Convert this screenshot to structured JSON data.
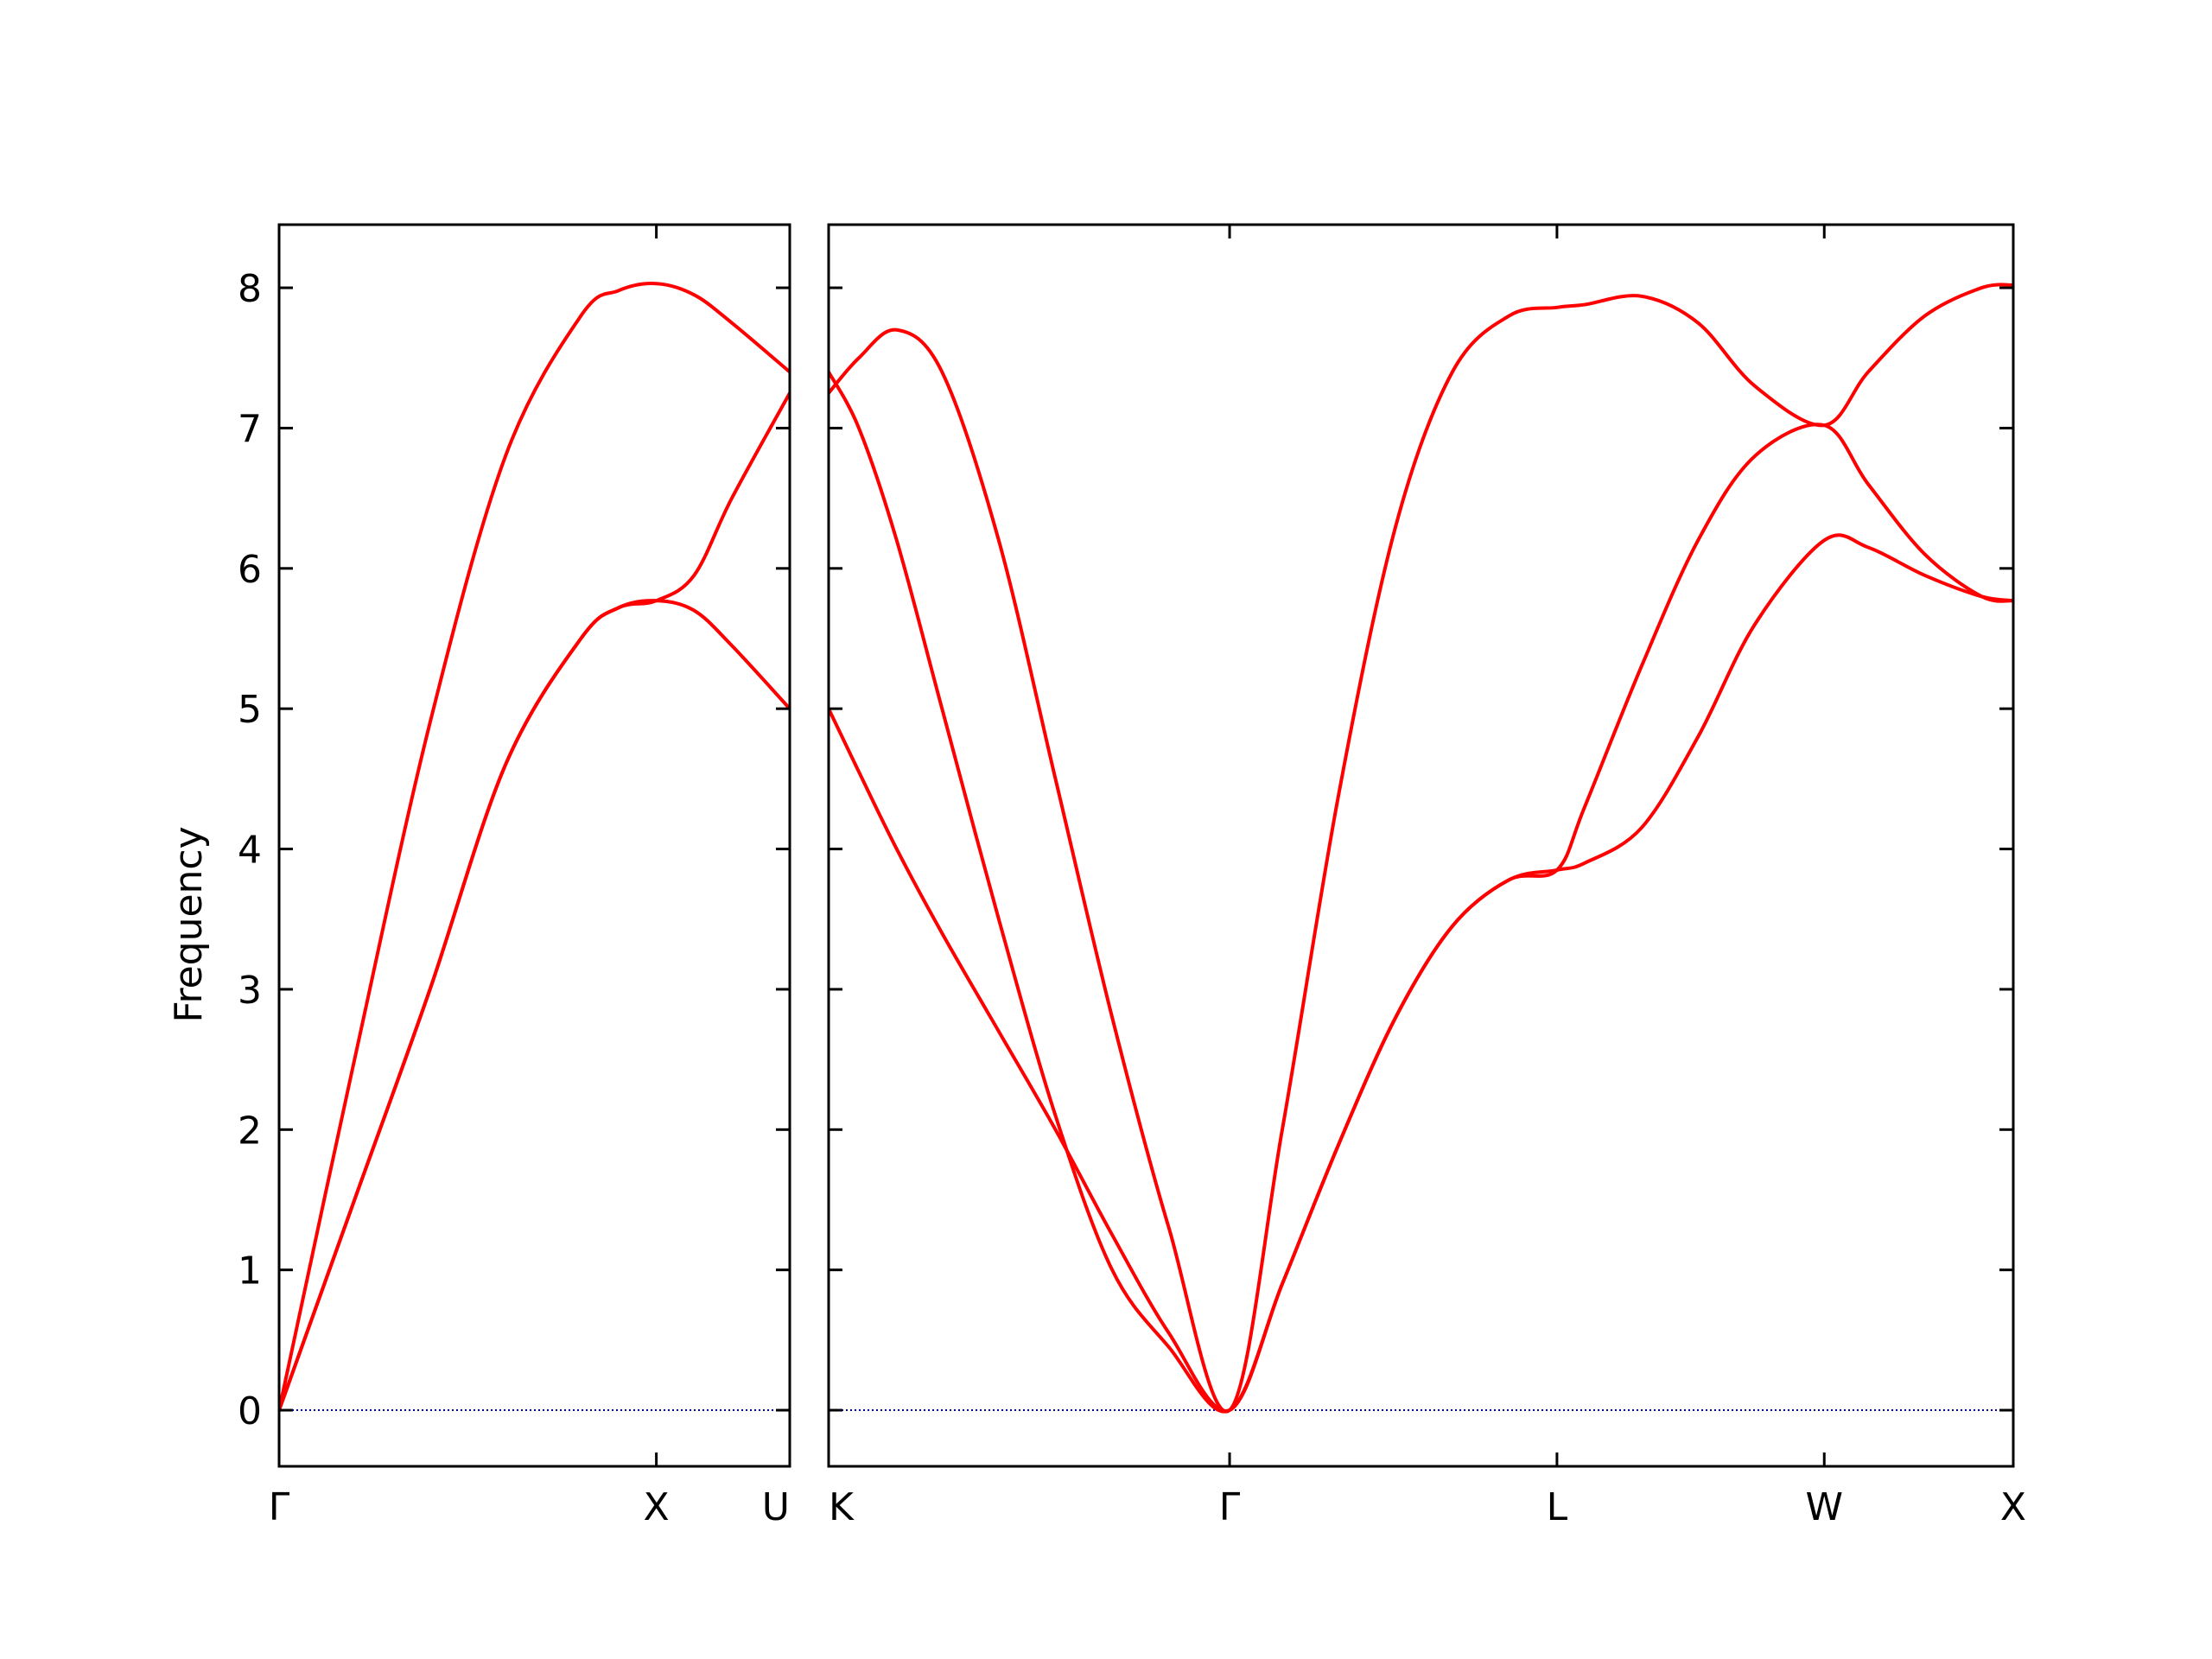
{
  "chart_data": {
    "type": "line",
    "ylabel": "Frequency",
    "ylim": [
      -0.4,
      8.45
    ],
    "yticks": [
      0,
      1,
      2,
      3,
      4,
      5,
      6,
      7,
      8
    ],
    "grid": false,
    "colors": {
      "bands": "#ff0000",
      "zero_line": "#0000aa",
      "frame": "#000000"
    },
    "segments": [
      {
        "path": [
          "Γ",
          "X",
          "U"
        ],
        "q_points": [
          0,
          1,
          1.3536
        ],
        "tick_labels": [
          "Γ",
          "X",
          "U"
        ],
        "series": [
          {
            "x": [
              0,
              0.2,
              0.4,
              0.6,
              0.8,
              0.9,
              1.0,
              1.1,
              1.2,
              1.3536
            ],
            "y": [
              0,
              2.5,
              4.9,
              6.8,
              7.8,
              7.98,
              8.03,
              7.95,
              7.75,
              7.4
            ]
          },
          {
            "x": [
              0,
              0.2,
              0.4,
              0.6,
              0.8,
              0.9,
              1.0,
              1.1,
              1.2,
              1.3536
            ],
            "y": [
              0,
              1.5,
              3.0,
              4.6,
              5.5,
              5.72,
              5.77,
              5.7,
              5.45,
              5.0
            ]
          },
          {
            "x": [
              0,
              0.2,
              0.4,
              0.6,
              0.8,
              0.9,
              1.0,
              1.1,
              1.2,
              1.3536
            ],
            "y": [
              0,
              1.5,
              3.0,
              4.6,
              5.5,
              5.72,
              5.77,
              5.95,
              6.5,
              7.25
            ]
          }
        ]
      },
      {
        "path": [
          "K",
          "Γ",
          "L",
          "W",
          "X"
        ],
        "q_points": [
          0,
          1.0607,
          1.9267,
          2.6338,
          3.1338
        ],
        "tick_labels": [
          "K",
          "Γ",
          "L",
          "W",
          "X"
        ],
        "series": [
          {
            "x": [
              0,
              0.08,
              0.18,
              0.3,
              0.45,
              0.6,
              0.75,
              0.9,
              1.0607,
              1.2,
              1.35,
              1.5,
              1.65,
              1.8,
              1.9267,
              2.0,
              2.15,
              2.3,
              2.45,
              2.6338,
              2.75,
              2.9,
              3.05,
              3.1338
            ],
            "y": [
              7.25,
              7.5,
              7.7,
              7.4,
              6.2,
              4.5,
              2.8,
              1.3,
              0,
              2.0,
              4.4,
              6.3,
              7.4,
              7.8,
              7.86,
              7.88,
              7.94,
              7.75,
              7.3,
              7.02,
              7.4,
              7.8,
              8.0,
              8.02
            ]
          },
          {
            "x": [
              0,
              0.08,
              0.18,
              0.3,
              0.45,
              0.6,
              0.75,
              0.9,
              1.0607,
              1.2,
              1.35,
              1.5,
              1.65,
              1.8,
              1.9267,
              2.0,
              2.15,
              2.3,
              2.45,
              2.6338,
              2.75,
              2.9,
              3.05,
              3.1338
            ],
            "y": [
              7.4,
              7.0,
              6.2,
              5.0,
              3.5,
              2.1,
              1.0,
              0.45,
              0,
              0.9,
              1.9,
              2.8,
              3.45,
              3.78,
              3.85,
              4.3,
              5.3,
              6.2,
              6.8,
              7.02,
              6.6,
              6.1,
              5.8,
              5.77
            ]
          },
          {
            "x": [
              0,
              0.08,
              0.18,
              0.3,
              0.45,
              0.6,
              0.75,
              0.9,
              1.0607,
              1.2,
              1.35,
              1.5,
              1.65,
              1.8,
              1.9267,
              2.0,
              2.15,
              2.3,
              2.45,
              2.6338,
              2.75,
              2.9,
              3.05,
              3.1338
            ],
            "y": [
              5.0,
              4.55,
              4.0,
              3.4,
              2.7,
              2.0,
              1.25,
              0.55,
              0,
              0.9,
              1.9,
              2.8,
              3.45,
              3.78,
              3.85,
              3.9,
              4.15,
              4.8,
              5.6,
              6.2,
              6.15,
              5.95,
              5.8,
              5.77
            ]
          }
        ]
      }
    ]
  }
}
